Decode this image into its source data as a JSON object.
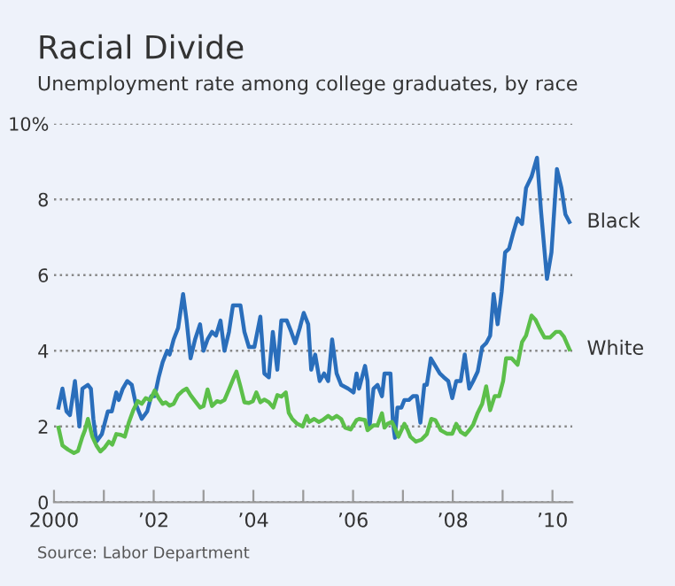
{
  "chart_data": {
    "type": "line",
    "title": "Racial Divide",
    "subtitle": "Unemployment rate among college graduates, by race",
    "annotations": [
      "Source: Labor Department"
    ],
    "series": [
      {
        "name": "Black",
        "color": "#2a6ebb",
        "x": [
          2000.09,
          2000.17,
          2000.25,
          2000.32,
          2000.42,
          2000.51,
          2000.57,
          2000.68,
          2000.74,
          2000.79,
          2000.85,
          2000.96,
          2001.08,
          2001.16,
          2001.25,
          2001.3,
          2001.38,
          2001.47,
          2001.56,
          2001.64,
          2001.76,
          2001.87,
          2001.95,
          2002.02,
          2002.1,
          2002.18,
          2002.27,
          2002.32,
          2002.4,
          2002.49,
          2002.59,
          2002.66,
          2002.74,
          2002.83,
          2002.93,
          2003.0,
          2003.08,
          2003.17,
          2003.25,
          2003.34,
          2003.42,
          2003.51,
          2003.59,
          2003.74,
          2003.82,
          2003.91,
          2004.02,
          2004.14,
          2004.22,
          2004.31,
          2004.39,
          2004.48,
          2004.56,
          2004.67,
          2004.76,
          2004.84,
          2004.93,
          2005.01,
          2005.1,
          2005.16,
          2005.24,
          2005.33,
          2005.42,
          2005.5,
          2005.58,
          2005.67,
          2005.76,
          2005.9,
          2006.01,
          2006.07,
          2006.12,
          2006.24,
          2006.29,
          2006.33,
          2006.41,
          2006.49,
          2006.58,
          2006.63,
          2006.69,
          2006.75,
          2006.8,
          2006.84,
          2006.89,
          2006.97,
          2007.03,
          2007.12,
          2007.2,
          2007.28,
          2007.35,
          2007.43,
          2007.48,
          2007.56,
          2007.65,
          2007.74,
          2007.82,
          2007.91,
          2007.99,
          2008.07,
          2008.16,
          2008.24,
          2008.33,
          2008.41,
          2008.5,
          2008.59,
          2008.67,
          2008.75,
          2008.82,
          2008.9,
          2008.98,
          2009.05,
          2009.13,
          2009.21,
          2009.3,
          2009.39,
          2009.47,
          2009.58,
          2009.69,
          2009.77,
          2009.89,
          2009.98,
          2010.09,
          2010.18,
          2010.26,
          2010.34
        ],
        "values": [
          2.5,
          3.0,
          2.4,
          2.3,
          3.2,
          2.0,
          3.0,
          3.1,
          3.0,
          2.2,
          1.6,
          1.8,
          2.4,
          2.4,
          2.9,
          2.7,
          3.0,
          3.2,
          3.1,
          2.6,
          2.2,
          2.4,
          2.8,
          2.8,
          3.3,
          3.7,
          4.0,
          3.9,
          4.3,
          4.6,
          5.5,
          4.8,
          3.8,
          4.3,
          4.7,
          4.0,
          4.3,
          4.5,
          4.4,
          4.8,
          4.0,
          4.5,
          5.2,
          5.2,
          4.5,
          4.1,
          4.1,
          4.9,
          3.4,
          3.3,
          4.5,
          3.5,
          4.8,
          4.8,
          4.5,
          4.2,
          4.6,
          5.0,
          4.7,
          3.5,
          3.9,
          3.2,
          3.4,
          3.2,
          4.3,
          3.4,
          3.1,
          3.0,
          2.9,
          3.4,
          3.0,
          3.6,
          3.2,
          2.0,
          3.0,
          3.1,
          2.8,
          3.4,
          3.4,
          3.4,
          2.1,
          1.7,
          2.5,
          2.5,
          2.7,
          2.7,
          2.8,
          2.8,
          2.1,
          3.1,
          3.1,
          3.8,
          3.6,
          3.4,
          3.3,
          3.2,
          2.75,
          3.2,
          3.2,
          3.9,
          3.0,
          3.2,
          3.45,
          4.1,
          4.2,
          4.4,
          5.5,
          4.7,
          5.55,
          6.6,
          6.7,
          7.1,
          7.5,
          7.35,
          8.3,
          8.6,
          9.1,
          7.7,
          5.9,
          6.6,
          8.8,
          8.3,
          7.6,
          7.4
        ]
      },
      {
        "name": "White",
        "color": "#5cbf4a",
        "x": [
          2000.09,
          2000.17,
          2000.28,
          2000.4,
          2000.48,
          2000.57,
          2000.62,
          2000.68,
          2000.77,
          2000.85,
          2000.93,
          2001.02,
          2001.1,
          2001.17,
          2001.25,
          2001.34,
          2001.42,
          2001.5,
          2001.59,
          2001.68,
          2001.76,
          2001.84,
          2001.93,
          2002.02,
          2002.1,
          2002.18,
          2002.24,
          2002.32,
          2002.4,
          2002.49,
          2002.59,
          2002.66,
          2002.74,
          2002.83,
          2002.93,
          2003.0,
          2003.08,
          2003.17,
          2003.27,
          2003.34,
          2003.42,
          2003.51,
          2003.61,
          2003.66,
          2003.74,
          2003.82,
          2003.91,
          2003.99,
          2004.06,
          2004.14,
          2004.22,
          2004.31,
          2004.4,
          2004.48,
          2004.56,
          2004.65,
          2004.71,
          2004.78,
          2004.88,
          2004.99,
          2005.07,
          2005.12,
          2005.22,
          2005.31,
          2005.39,
          2005.5,
          2005.58,
          2005.67,
          2005.76,
          2005.84,
          2005.95,
          2006.07,
          2006.12,
          2006.24,
          2006.29,
          2006.41,
          2006.49,
          2006.58,
          2006.63,
          2006.69,
          2006.78,
          2006.86,
          2006.91,
          2007.03,
          2007.09,
          2007.15,
          2007.26,
          2007.37,
          2007.48,
          2007.57,
          2007.65,
          2007.76,
          2007.88,
          2007.99,
          2008.07,
          2008.16,
          2008.25,
          2008.33,
          2008.41,
          2008.5,
          2008.59,
          2008.67,
          2008.75,
          2008.84,
          2008.93,
          2009.01,
          2009.07,
          2009.18,
          2009.3,
          2009.39,
          2009.47,
          2009.58,
          2009.66,
          2009.75,
          2009.84,
          2009.95,
          2010.07,
          2010.15,
          2010.23,
          2010.34
        ],
        "values": [
          1.97,
          1.5,
          1.39,
          1.3,
          1.35,
          1.73,
          1.9,
          2.2,
          1.73,
          1.5,
          1.34,
          1.45,
          1.6,
          1.52,
          1.8,
          1.78,
          1.73,
          2.1,
          2.43,
          2.67,
          2.6,
          2.75,
          2.7,
          2.95,
          2.75,
          2.6,
          2.64,
          2.55,
          2.6,
          2.83,
          2.95,
          3.0,
          2.83,
          2.67,
          2.5,
          2.54,
          2.98,
          2.54,
          2.67,
          2.64,
          2.7,
          2.98,
          3.3,
          3.45,
          3.06,
          2.64,
          2.62,
          2.67,
          2.9,
          2.64,
          2.71,
          2.64,
          2.5,
          2.83,
          2.79,
          2.9,
          2.36,
          2.2,
          2.07,
          2.0,
          2.28,
          2.12,
          2.2,
          2.12,
          2.17,
          2.28,
          2.2,
          2.28,
          2.2,
          1.97,
          1.92,
          2.17,
          2.2,
          2.17,
          1.9,
          2.03,
          2.03,
          2.35,
          1.97,
          2.07,
          2.12,
          1.9,
          1.73,
          2.07,
          1.92,
          1.73,
          1.6,
          1.65,
          1.8,
          2.2,
          2.17,
          1.9,
          1.81,
          1.81,
          2.07,
          1.86,
          1.78,
          1.9,
          2.05,
          2.36,
          2.6,
          3.06,
          2.43,
          2.8,
          2.8,
          3.2,
          3.8,
          3.8,
          3.63,
          4.23,
          4.4,
          4.93,
          4.82,
          4.57,
          4.35,
          4.35,
          4.5,
          4.5,
          4.37,
          4.04
        ]
      }
    ],
    "xlim": [
      2000,
      2010.4
    ],
    "xticks": [
      2000,
      {
        "value": 2001,
        "label": null
      },
      {
        "value": 2002,
        "label": "’02"
      },
      {
        "value": 2003,
        "label": null
      },
      {
        "value": 2004,
        "label": "’04"
      },
      {
        "value": 2005,
        "label": null
      },
      {
        "value": 2006,
        "label": "’06"
      },
      {
        "value": 2007,
        "label": null
      },
      {
        "value": 2008,
        "label": "’08"
      },
      {
        "value": 2009,
        "label": null
      },
      {
        "value": 2010,
        "label": "’10"
      }
    ],
    "ylim": [
      0,
      10
    ],
    "yticks": [
      0,
      2,
      4,
      6,
      8,
      {
        "value": 10,
        "label": "10%"
      }
    ],
    "grid": "y",
    "legend": false,
    "marker": "none",
    "line_style": "solid"
  }
}
